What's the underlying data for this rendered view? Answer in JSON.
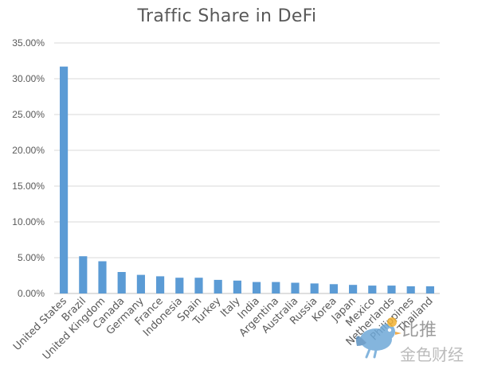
{
  "chart_data": {
    "type": "bar",
    "title": "Traffic Share in DeFi",
    "xlabel": "",
    "ylabel": "",
    "ylim": [
      0,
      0.35
    ],
    "ytick_labels": [
      "0.00%",
      "5.00%",
      "10.00%",
      "15.00%",
      "20.00%",
      "25.00%",
      "30.00%",
      "35.00%"
    ],
    "grid": true,
    "legend": "none",
    "bar_color": "#5b9bd5",
    "categories": [
      "United States",
      "Brazil",
      "United Kingdom",
      "Canada",
      "Germany",
      "France",
      "Indonesia",
      "Spain",
      "Turkey",
      "Italy",
      "India",
      "Argentina",
      "Australia",
      "Russia",
      "Korea",
      "Japan",
      "Mexico",
      "Netherlands",
      "Philippines",
      "Thailand"
    ],
    "values": [
      0.317,
      0.052,
      0.045,
      0.03,
      0.026,
      0.024,
      0.022,
      0.022,
      0.019,
      0.018,
      0.016,
      0.016,
      0.015,
      0.014,
      0.013,
      0.012,
      0.011,
      0.011,
      0.01,
      0.01
    ]
  },
  "watermark": {
    "top_text": "比推",
    "bottom_text": "金色财经",
    "icon": "bird-logo-icon"
  }
}
